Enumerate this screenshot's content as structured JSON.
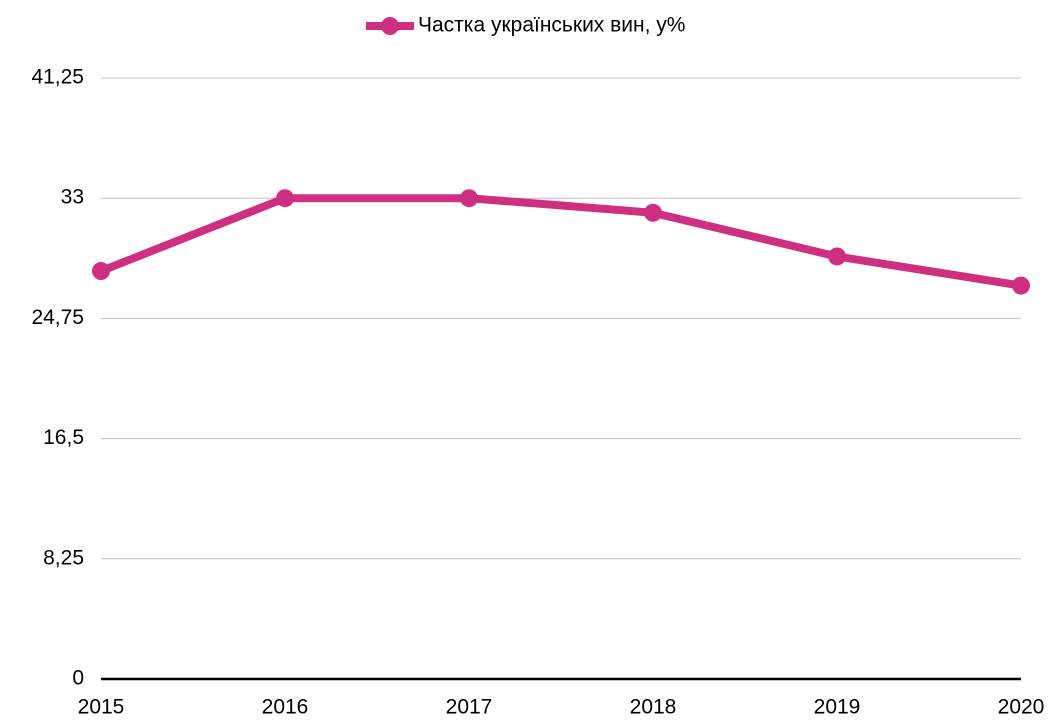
{
  "chart_data": {
    "type": "line",
    "categories": [
      "2015",
      "2016",
      "2017",
      "2018",
      "2019",
      "2020"
    ],
    "series": [
      {
        "name": "Частка українських вин, у%",
        "color": "#cf2f80",
        "values": [
          28,
          33,
          33,
          32,
          29,
          27
        ]
      }
    ],
    "ylim": [
      0,
      41.25
    ],
    "yticks": [
      0,
      {
        "value": 8.25,
        "label": "8,25"
      },
      {
        "value": 16.5,
        "label": "16,5"
      },
      {
        "value": 24.75,
        "label": "24,75"
      },
      33,
      {
        "value": 41.25,
        "label": "41,25"
      }
    ],
    "grid": true,
    "legend": "top"
  }
}
